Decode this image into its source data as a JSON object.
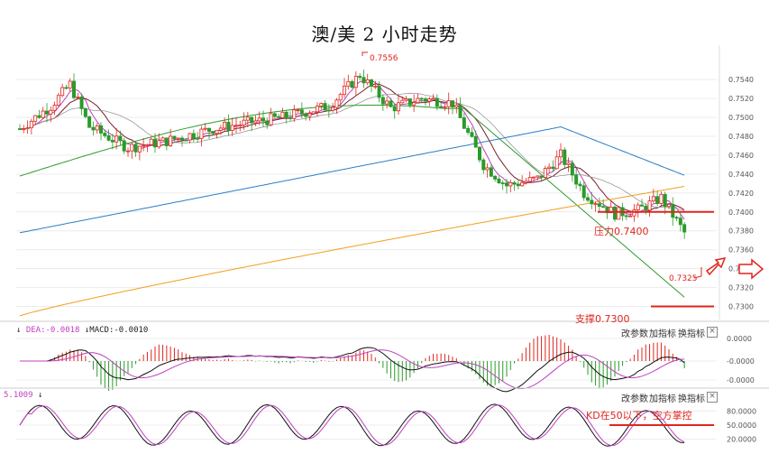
{
  "chart_data": {
    "type": "candlestick",
    "title": "澳/美 2 小时走势",
    "y_ticks": [
      "0.7540",
      "0.7520",
      "0.7500",
      "0.7480",
      "0.7460",
      "0.7440",
      "0.7420",
      "0.7400",
      "0.7380",
      "0.7360",
      "0.7340",
      "0.7320",
      "0.7300"
    ],
    "ylim": [
      0.729,
      0.7565
    ],
    "high_label": "0.7556",
    "current_label": "0.7325",
    "resistance": {
      "label": "压力0.7400",
      "value": 0.74
    },
    "support": {
      "label": "支撑0.7300",
      "value": 0.73
    },
    "macd": {
      "dea_label": "DEA:-0.0018",
      "macd_label": "MACD:-0.0010",
      "ticks": [
        "0.0000",
        "-0.0000",
        "-0.0000"
      ]
    },
    "kd": {
      "label": "5.1009",
      "ticks": [
        "80.0000",
        "50.0000",
        "20.0000"
      ],
      "annotation": "KD在50以下，空方掌控",
      "level": 50
    },
    "panel_buttons": [
      "改参数",
      "加指标",
      "换指标"
    ],
    "close_symbol": "×",
    "colors": {
      "up": "#e0251e",
      "down": "#2a9a2a",
      "ma_purple": "#c040c0",
      "ma_dark": "#7a1f2a",
      "ma_gray": "#999999",
      "ma_green": "#2e9a2e",
      "ma_blue": "#2b7fc8",
      "ma_orange": "#f0a020",
      "annotation": "#e0251e"
    }
  }
}
